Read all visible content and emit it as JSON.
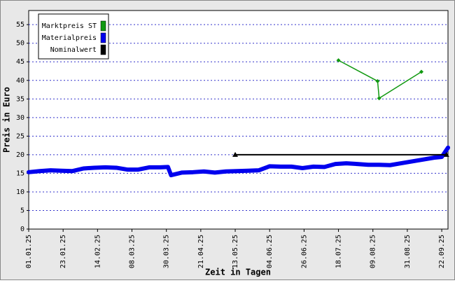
{
  "chart_data": {
    "type": "line",
    "y_label": "Preis in Euro",
    "x_label": "Zeit in Tagen",
    "xlim": [
      "01.01.25",
      "26.09.25"
    ],
    "xticks": [
      "01.01.25",
      "23.01.25",
      "14.02.25",
      "08.03.25",
      "30.03.25",
      "21.04.25",
      "13.05.25",
      "04.06.25",
      "26.06.25",
      "18.07.25",
      "09.08.25",
      "31.08.25",
      "22.09.25"
    ],
    "ylim": [
      0,
      58.8
    ],
    "yticks": [
      0,
      5,
      10,
      15,
      20,
      25,
      30,
      35,
      40,
      45,
      50,
      55
    ],
    "grid": true,
    "legend": "top-left",
    "series": [
      {
        "name": "Marktpreis ST",
        "color": "#119911",
        "marker": "diamond",
        "width": 1.5,
        "x": [
          "18.07.25",
          "12.08.25",
          "13.08.25",
          "09.09.25"
        ],
        "values": [
          45.4,
          39.8,
          35.2,
          42.3
        ]
      },
      {
        "name": "Materialpreis",
        "color": "#0000ee",
        "marker": "none",
        "width": 6,
        "x": [
          "01.01.25",
          "08.01.25",
          "15.01.25",
          "22.01.25",
          "29.01.25",
          "05.02.25",
          "12.02.25",
          "19.02.25",
          "26.02.25",
          "05.03.25",
          "12.03.25",
          "19.03.25",
          "26.03.25",
          "31.03.25",
          "02.04.25",
          "09.04.25",
          "16.04.25",
          "23.04.25",
          "30.04.25",
          "07.05.25",
          "14.05.25",
          "21.05.25",
          "28.05.25",
          "04.06.25",
          "11.06.25",
          "18.06.25",
          "25.06.25",
          "02.07.25",
          "09.07.25",
          "16.07.25",
          "23.07.25",
          "30.07.25",
          "06.08.25",
          "13.08.25",
          "20.08.25",
          "27.08.25",
          "03.09.25",
          "10.09.25",
          "17.09.25",
          "22.09.25",
          "26.09.25"
        ],
        "values": [
          15.3,
          15.6,
          15.8,
          15.7,
          15.6,
          16.3,
          16.5,
          16.6,
          16.5,
          16.0,
          16.0,
          16.6,
          16.6,
          16.7,
          14.5,
          15.2,
          15.3,
          15.5,
          15.2,
          15.5,
          15.6,
          15.7,
          15.8,
          16.9,
          16.8,
          16.8,
          16.4,
          16.8,
          16.7,
          17.5,
          17.7,
          17.5,
          17.3,
          17.3,
          17.2,
          17.7,
          18.2,
          18.7,
          19.2,
          19.4,
          21.9
        ]
      },
      {
        "name": "Nominalwert",
        "color": "#000000",
        "marker": "triangle",
        "width": 2,
        "x": [
          "13.05.25",
          "25.09.25"
        ],
        "values": [
          20.0,
          20.0
        ]
      }
    ]
  }
}
